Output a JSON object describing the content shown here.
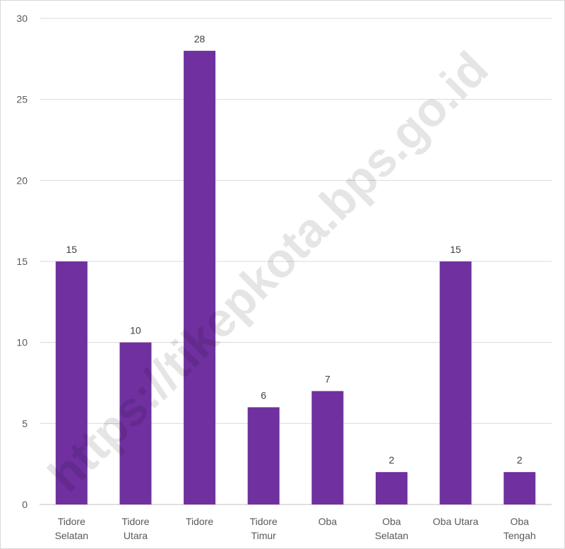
{
  "watermark": "https://tikepkota.bps.go.id",
  "chart_data": {
    "type": "bar",
    "categories": [
      [
        "Tidore",
        "Selatan"
      ],
      [
        "Tidore",
        "Utara"
      ],
      [
        "Tidore"
      ],
      [
        "Tidore",
        "Timur"
      ],
      [
        "Oba"
      ],
      [
        "Oba",
        "Selatan"
      ],
      [
        "Oba Utara"
      ],
      [
        "Oba",
        "Tengah"
      ]
    ],
    "values": [
      15,
      10,
      28,
      6,
      7,
      2,
      15,
      2
    ],
    "ylim": [
      0,
      30
    ],
    "yticks": [
      0,
      5,
      10,
      15,
      20,
      25,
      30
    ],
    "grid": true,
    "data_labels": true,
    "bar_color": "#7030a0",
    "grid_color": "#d9d9d9",
    "axis_color": "#bfbfbf"
  }
}
